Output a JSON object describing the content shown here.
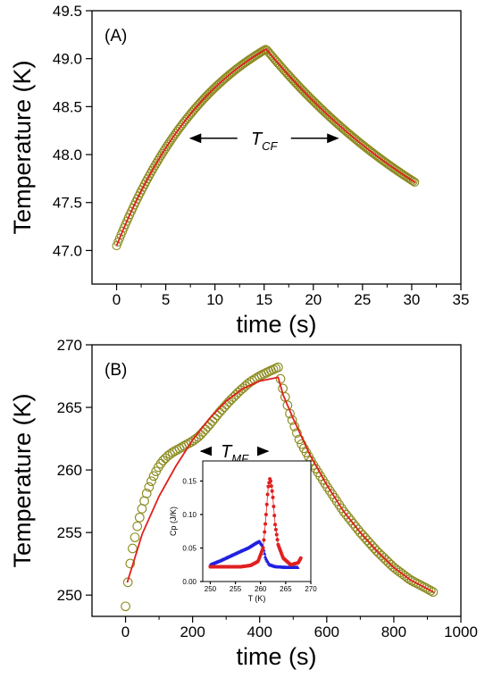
{
  "chart_data": [
    {
      "type": "scatter",
      "panel_label": "(A)",
      "xlabel": "time (s)",
      "ylabel": "Temperature (K)",
      "xlim": [
        -2.5,
        35
      ],
      "ylim": [
        46.65,
        49.5
      ],
      "xticks": [
        0,
        5,
        10,
        15,
        20,
        25,
        30,
        35
      ],
      "yticks": [
        47.0,
        47.5,
        48.0,
        48.5,
        49.0,
        49.5
      ],
      "annotation": {
        "text": "T",
        "subscript": "CF",
        "arrow_from_x": 7.5,
        "arrow_to_x": 22.5,
        "y": 48.17
      },
      "series": [
        {
          "kind": "markers",
          "marker": "open-circle",
          "color": "#8a8a1e",
          "segments": [
            {
              "t_start": 0.0,
              "t_end": 15.2,
              "y_start": 47.05,
              "y_peak": 49.1,
              "tau": 10.4
            },
            {
              "t_start": 15.2,
              "t_end": 30.4,
              "y_start": 49.1,
              "y_inf": 46.2,
              "tau": 23.2
            }
          ],
          "step": 0.15
        },
        {
          "kind": "line",
          "color": "#e0201b",
          "fit": true
        }
      ]
    },
    {
      "type": "scatter",
      "panel_label": "(B)",
      "xlabel": "time (s)",
      "ylabel": "Temperature (K)",
      "xlim": [
        -100,
        1000
      ],
      "ylim": [
        248.3,
        270
      ],
      "xticks": [
        0,
        200,
        400,
        600,
        800,
        1000
      ],
      "yticks": [
        250,
        255,
        260,
        265,
        270
      ],
      "annotation": {
        "text": "T",
        "subscript": "MF",
        "arrow_from_x": 225,
        "arrow_to_x": 425,
        "y": 261.5
      },
      "series": [
        {
          "kind": "markers",
          "marker": "open-circle",
          "color": "#8a8a1e",
          "points": [
            [
              0,
              249.1
            ],
            [
              5,
              250.5
            ],
            [
              10,
              251.8
            ],
            [
              20,
              253.6
            ],
            [
              35,
              255.5
            ],
            [
              50,
              257.0
            ],
            [
              65,
              258.3
            ],
            [
              80,
              259.3
            ],
            [
              95,
              260.1
            ],
            [
              110,
              260.7
            ],
            [
              125,
              261.1
            ],
            [
              140,
              261.4
            ],
            [
              160,
              261.7
            ],
            [
              180,
              262.0
            ],
            [
              200,
              262.3
            ],
            [
              220,
              262.7
            ],
            [
              250,
              263.6
            ],
            [
              280,
              264.6
            ],
            [
              310,
              265.5
            ],
            [
              340,
              266.3
            ],
            [
              370,
              267.0
            ],
            [
              400,
              267.5
            ],
            [
              430,
              267.9
            ],
            [
              455,
              268.2
            ],
            [
              460,
              267.5
            ],
            [
              470,
              266.4
            ],
            [
              490,
              264.5
            ],
            [
              520,
              262.3
            ],
            [
              560,
              260.4
            ],
            [
              600,
              258.7
            ],
            [
              650,
              256.7
            ],
            [
              700,
              255.0
            ],
            [
              750,
              253.5
            ],
            [
              800,
              252.2
            ],
            [
              850,
              251.2
            ],
            [
              900,
              250.5
            ],
            [
              920,
              250.2
            ]
          ],
          "step": 7
        },
        {
          "kind": "line",
          "color": "#e0201b",
          "points": [
            [
              5,
              251.0
            ],
            [
              50,
              254.9
            ],
            [
              100,
              257.9
            ],
            [
              150,
              260.3
            ],
            [
              200,
              262.4
            ],
            [
              250,
              264.1
            ],
            [
              300,
              265.5
            ],
            [
              350,
              266.5
            ],
            [
              400,
              267.1
            ],
            [
              455,
              267.4
            ],
            [
              470,
              266.0
            ],
            [
              500,
              264.1
            ],
            [
              550,
              261.2
            ],
            [
              600,
              258.8
            ],
            [
              650,
              256.7
            ],
            [
              700,
              255.0
            ],
            [
              750,
              253.5
            ],
            [
              800,
              252.2
            ],
            [
              850,
              251.2
            ],
            [
              900,
              250.5
            ],
            [
              920,
              250.2
            ]
          ]
        }
      ],
      "inset": {
        "type": "scatter",
        "xlabel": "T (K)",
        "ylabel": "Cp (J/K)",
        "xlim": [
          248.5,
          270
        ],
        "ylim": [
          0,
          0.18
        ],
        "xticks": [
          250,
          255,
          260,
          265,
          270
        ],
        "yticks": [
          0.0,
          0.05,
          0.1,
          0.15
        ],
        "ytick_labels": [
          "0.00",
          "0.05",
          "0.10",
          "0.15"
        ],
        "series": [
          {
            "color": "#2020e0",
            "marker": "triangle",
            "points": [
              [
                250,
                0.025
              ],
              [
                252,
                0.031
              ],
              [
                254,
                0.038
              ],
              [
                256,
                0.045
              ],
              [
                257.5,
                0.05
              ],
              [
                259,
                0.057
              ],
              [
                259.8,
                0.06
              ],
              [
                260.5,
                0.052
              ],
              [
                261,
                0.035
              ],
              [
                261.8,
                0.025
              ],
              [
                263,
                0.022
              ],
              [
                265,
                0.021
              ],
              [
                267.5,
                0.021
              ]
            ]
          },
          {
            "color": "#e02020",
            "marker": "circle",
            "points": [
              [
                250,
                0.022
              ],
              [
                253,
                0.022
              ],
              [
                256,
                0.022
              ],
              [
                258,
                0.024
              ],
              [
                259.5,
                0.03
              ],
              [
                260.5,
                0.05
              ],
              [
                261,
                0.09
              ],
              [
                261.5,
                0.14
              ],
              [
                261.9,
                0.155
              ],
              [
                262.4,
                0.13
              ],
              [
                262.9,
                0.085
              ],
              [
                263.5,
                0.055
              ],
              [
                264.5,
                0.035
              ],
              [
                266,
                0.025
              ],
              [
                267.5,
                0.028
              ],
              [
                268,
                0.035
              ]
            ]
          }
        ]
      }
    }
  ]
}
